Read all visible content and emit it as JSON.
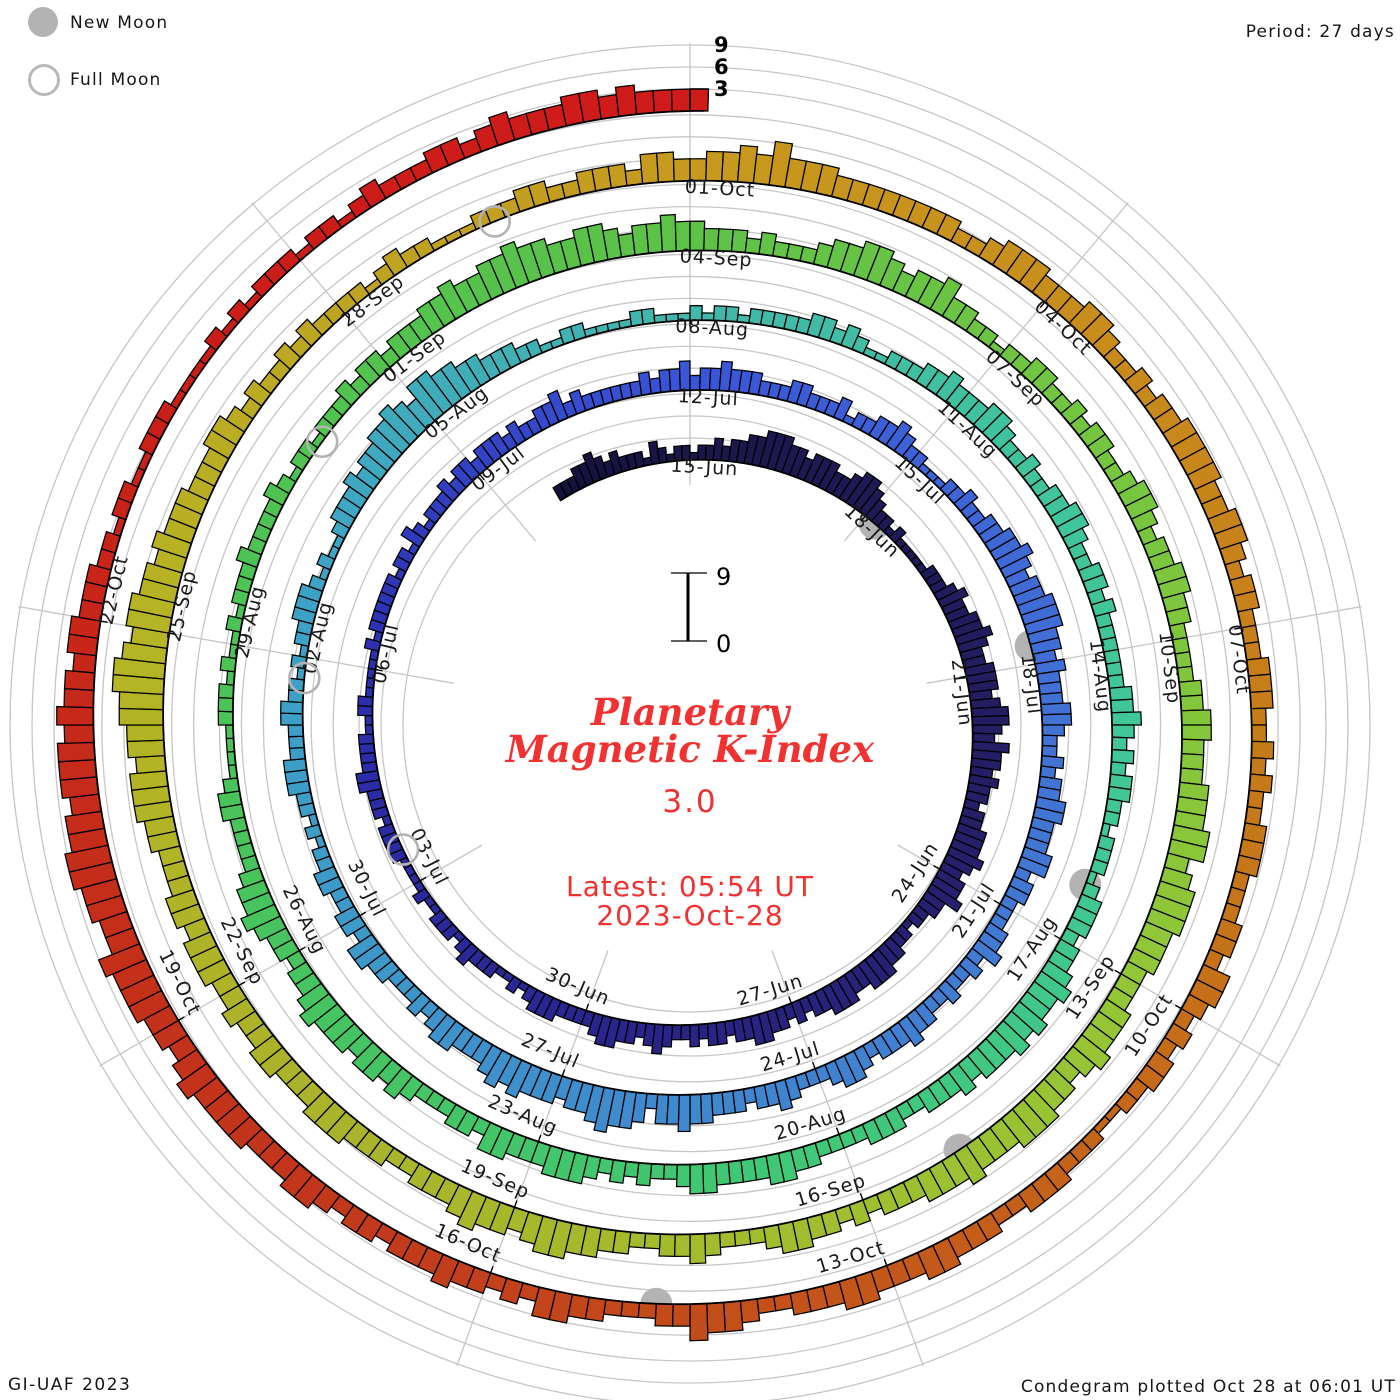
{
  "legend": {
    "new_moon_label": "New Moon",
    "full_moon_label": "Full Moon"
  },
  "header": {
    "period_label": "Period: 27 days"
  },
  "footer": {
    "credit": "GI-UAF 2023",
    "plotted": "Condegram plotted Oct 28 at 06:01 UT"
  },
  "center": {
    "title_line1": "Planetary",
    "title_line2": "Magnetic K-Index",
    "current_value": "3.0",
    "latest_line1": "Latest: 05:54 UT",
    "latest_line2": "2023-Oct-28",
    "inner_scale_top": "9",
    "inner_scale_bottom": "0"
  },
  "colors": {
    "accent_red": "#f23131",
    "moon_gray": "#b3b3b3",
    "grid_gray": "#c6c6c6",
    "bar_outline": "#000000",
    "label_ink": "#1a1a1a"
  },
  "chart_data": {
    "type": "polar_spiral_bar",
    "title": "Planetary Magnetic K-Index",
    "current_k_index": 3.0,
    "latest_time": "05:54 UT 2023-Oct-28",
    "start_date": "2023-06-15",
    "period_days": 27,
    "samples_per_day": 8,
    "start_day_offset": -2.25,
    "k_axis": {
      "min": 0,
      "max": 9,
      "outer_tick_labels": [
        "3",
        "6",
        "9"
      ]
    },
    "date_labels": [
      {
        "day": 0,
        "label": "15-Jun"
      },
      {
        "day": 3,
        "label": "18-Jun"
      },
      {
        "day": 6,
        "label": "21-Jun"
      },
      {
        "day": 9,
        "label": "24-Jun"
      },
      {
        "day": 12,
        "label": "27-Jun"
      },
      {
        "day": 15,
        "label": "30-Jun"
      },
      {
        "day": 18,
        "label": "03-Jul"
      },
      {
        "day": 21,
        "label": "06-Jul"
      },
      {
        "day": 24,
        "label": "09-Jul"
      },
      {
        "day": 27,
        "label": "12-Jul"
      },
      {
        "day": 30,
        "label": "15-Jul"
      },
      {
        "day": 33,
        "label": "18-Jul"
      },
      {
        "day": 36,
        "label": "21-Jul"
      },
      {
        "day": 39,
        "label": "24-Jul"
      },
      {
        "day": 42,
        "label": "27-Jul"
      },
      {
        "day": 45,
        "label": "30-Jul"
      },
      {
        "day": 48,
        "label": "02-Aug"
      },
      {
        "day": 51,
        "label": "05-Aug"
      },
      {
        "day": 54,
        "label": "08-Aug"
      },
      {
        "day": 57,
        "label": "11-Aug"
      },
      {
        "day": 60,
        "label": "14-Aug"
      },
      {
        "day": 63,
        "label": "17-Aug"
      },
      {
        "day": 66,
        "label": "20-Aug"
      },
      {
        "day": 69,
        "label": "23-Aug"
      },
      {
        "day": 72,
        "label": "26-Aug"
      },
      {
        "day": 75,
        "label": "29-Aug"
      },
      {
        "day": 78,
        "label": "01-Sep"
      },
      {
        "day": 81,
        "label": "04-Sep"
      },
      {
        "day": 84,
        "label": "07-Sep"
      },
      {
        "day": 87,
        "label": "10-Sep"
      },
      {
        "day": 90,
        "label": "13-Sep"
      },
      {
        "day": 93,
        "label": "16-Sep"
      },
      {
        "day": 96,
        "label": "19-Sep"
      },
      {
        "day": 99,
        "label": "22-Sep"
      },
      {
        "day": 102,
        "label": "25-Sep"
      },
      {
        "day": 105,
        "label": "28-Sep"
      },
      {
        "day": 108,
        "label": "01-Oct"
      },
      {
        "day": 111,
        "label": "04-Oct"
      },
      {
        "day": 114,
        "label": "07-Oct"
      },
      {
        "day": 117,
        "label": "10-Oct"
      },
      {
        "day": 120,
        "label": "13-Oct"
      },
      {
        "day": 123,
        "label": "16-Oct"
      },
      {
        "day": 126,
        "label": "19-Oct"
      },
      {
        "day": 129,
        "label": "22-Oct"
      }
    ],
    "moons": [
      {
        "type": "new",
        "day": 3.19
      },
      {
        "type": "new",
        "day": 32.77
      },
      {
        "type": "new",
        "day": 62.4
      },
      {
        "type": "new",
        "day": 92.07
      },
      {
        "type": "new",
        "day": 121.75
      },
      {
        "type": "full",
        "day": 18.49
      },
      {
        "type": "full",
        "day": 47.77
      },
      {
        "type": "full",
        "day": 77.07
      },
      {
        "type": "full",
        "day": 106.41
      }
    ],
    "colormap": [
      [
        -2.25,
        "#14113c"
      ],
      [
        0,
        "#1b174a"
      ],
      [
        8,
        "#251f67"
      ],
      [
        14,
        "#2a2489"
      ],
      [
        21,
        "#2c2fae"
      ],
      [
        27,
        "#3a55d8"
      ],
      [
        34,
        "#4273d4"
      ],
      [
        40,
        "#3f86cf"
      ],
      [
        45,
        "#3d9ac8"
      ],
      [
        49,
        "#3da4c6"
      ],
      [
        54,
        "#42b7ab"
      ],
      [
        58,
        "#3fc49c"
      ],
      [
        62,
        "#41c795"
      ],
      [
        66,
        "#3fc878"
      ],
      [
        71,
        "#45c463"
      ],
      [
        77,
        "#4fc350"
      ],
      [
        81,
        "#5ec247"
      ],
      [
        86,
        "#79c63e"
      ],
      [
        90,
        "#93c636"
      ],
      [
        94,
        "#a3bc2e"
      ],
      [
        98,
        "#abb32a"
      ],
      [
        102,
        "#b5b424"
      ],
      [
        105,
        "#bda522"
      ],
      [
        108,
        "#c79a1e"
      ],
      [
        112,
        "#c88a1b"
      ],
      [
        116,
        "#c57618"
      ],
      [
        120,
        "#c4581a"
      ],
      [
        124,
        "#c2391b"
      ],
      [
        128,
        "#c52a1a"
      ],
      [
        131,
        "#cb1d17"
      ],
      [
        135.25,
        "#d01b1b"
      ]
    ],
    "k_values_3hr": "2223343232221321221223233445554434443345543221211111222343344543344434554354434332334445434453322122334443344433232334433233232234323344322223332121122232122211211112222122233222211221111121222222122132122232332333232233423222222323342334333222332223122334322111223223344543445554434333443223233443334423322233423223223343332344322234332333445442455654434445454333443232223344233223322121223332223322121223332121123334344556546655443332211221111221112122122222332321122233433344322322334432233232222223343232332212221233323345445454443433322333222233443333443223232344433344233222343443444543323345443222233211112221211212223222232122122232332333445445565544554344544333232223445543445332212233223233223443233443322223344333444553455544433344454344555444544433323233443222343322334455434454333223334443334433433444344333445554556677656655454443334432322323222212322111222332233324433445464443333333322344433344322323344443344323322233322323223332223324432323322112223332233344333443332234453322233442323343332332344333444454344555644556655455545443443332212211222111121212221221232223323433344343333"
  }
}
